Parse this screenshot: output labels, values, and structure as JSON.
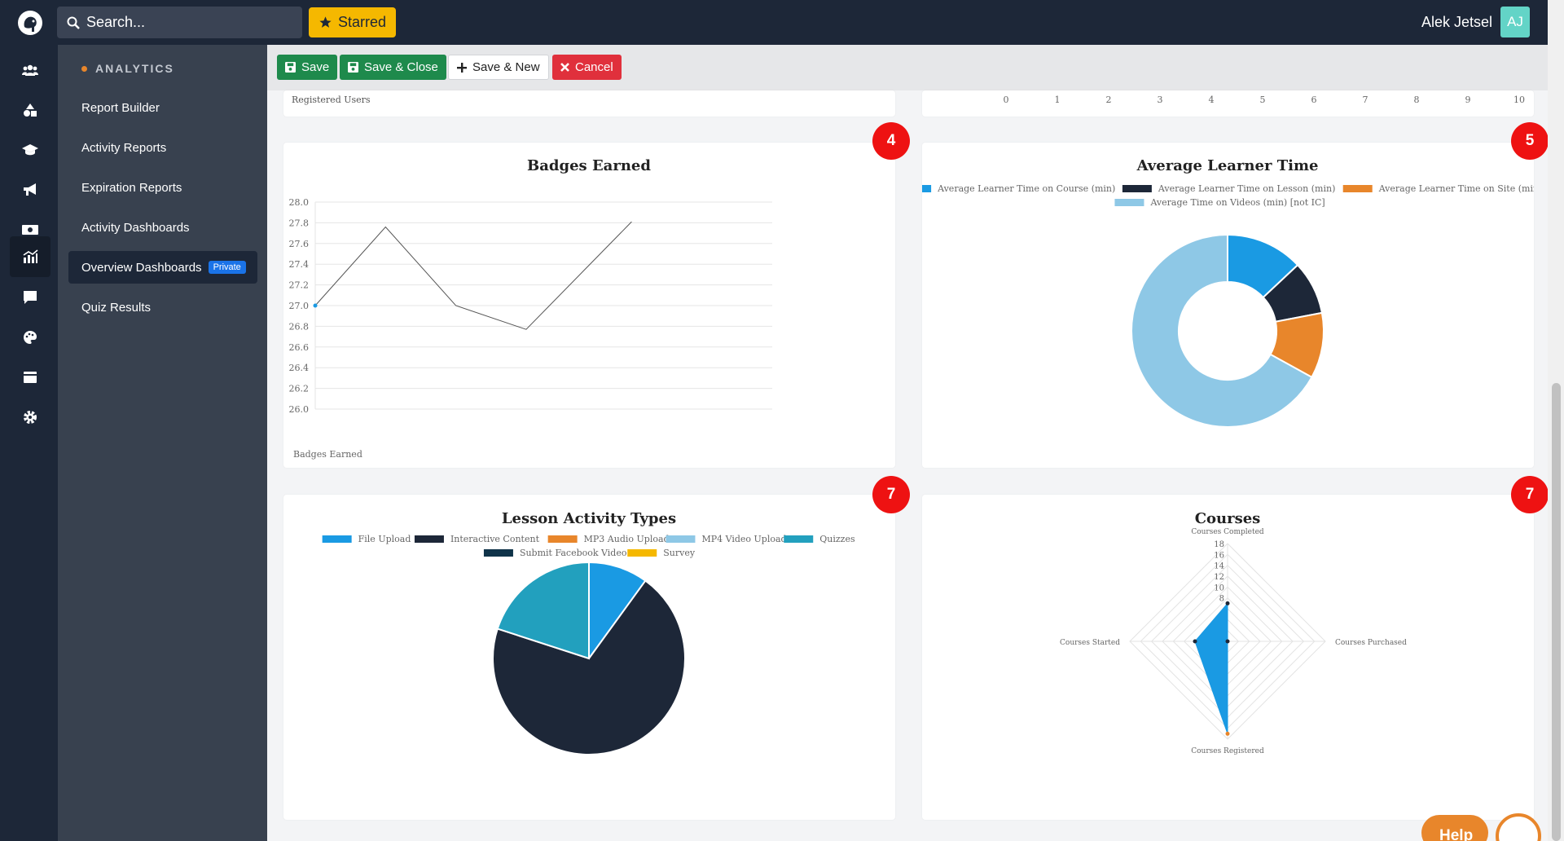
{
  "topbar": {
    "search_placeholder": "Search...",
    "starred_label": "Starred",
    "user_name": "Alek Jetsel",
    "user_initials": "AJ"
  },
  "rail": {
    "icons": [
      "users-icon",
      "shapes-icon",
      "graduation-cap-icon",
      "megaphone-icon",
      "money-icon",
      "analytics-icon",
      "chat-icon",
      "palette-icon",
      "calendar-icon",
      "gear-icon"
    ],
    "active": "analytics-icon"
  },
  "sidenav": {
    "section_title": "ANALYTICS",
    "items": [
      {
        "label": "Report Builder"
      },
      {
        "label": "Activity Reports"
      },
      {
        "label": "Expiration Reports"
      },
      {
        "label": "Activity Dashboards"
      },
      {
        "label": "Overview Dashboards",
        "badge": "Private"
      },
      {
        "label": "Quiz Results"
      }
    ]
  },
  "toolbar": {
    "save": "Save",
    "save_close": "Save & Close",
    "save_new": "Save & New",
    "cancel": "Cancel"
  },
  "cards": {
    "top_left_axis_label": "Registered Users",
    "top_right_ticks": [
      "0",
      "1",
      "2",
      "3",
      "4",
      "5",
      "6",
      "7",
      "8",
      "9",
      "10"
    ],
    "badges": [
      "4",
      "5",
      "7",
      "7"
    ]
  },
  "help": {
    "label": "Help"
  },
  "colors": {
    "dark": "#1d2738",
    "accent_orange": "#e8862b",
    "blue": "#1a9ae3",
    "light_blue": "#8ec8e6",
    "teal": "#22a0be",
    "navy": "#0f3349",
    "yellow": "#f5b800",
    "red_badge": "#ee1212"
  },
  "chart_data": [
    {
      "type": "line",
      "title": "Badges Earned",
      "xlabel": "Badges Earned",
      "ylabel": "",
      "ylim": [
        26.0,
        28.0
      ],
      "yticks": [
        "28.0",
        "27.8",
        "27.6",
        "27.4",
        "27.2",
        "27.0",
        "26.8",
        "26.6",
        "26.4",
        "26.2",
        "26.0"
      ],
      "x": [
        0,
        1,
        2,
        3,
        4.5
      ],
      "xlim": [
        0,
        6.5
      ],
      "values": [
        27.0,
        27.76,
        27.0,
        26.77,
        27.81
      ],
      "grid": true
    },
    {
      "type": "pie",
      "title": "Average Learner Time",
      "donut": true,
      "legend_position": "top",
      "series": [
        {
          "name": "Average Learner Time on Course (min)",
          "value": 13,
          "color": "#1a9ae3"
        },
        {
          "name": "Average Learner Time on Lesson (min)",
          "value": 9,
          "color": "#1d2738"
        },
        {
          "name": "Average Learner Time on Site (min)",
          "value": 11,
          "color": "#e8862b"
        },
        {
          "name": "Average Time on Videos (min) [not IC]",
          "value": 67,
          "color": "#8ec8e6"
        }
      ]
    },
    {
      "type": "pie",
      "title": "Lesson Activity Types",
      "legend_position": "top",
      "series": [
        {
          "name": "File Upload",
          "value": 10,
          "color": "#1a9ae3"
        },
        {
          "name": "Interactive Content",
          "value": 70,
          "color": "#1d2738"
        },
        {
          "name": "MP3 Audio Upload",
          "value": 0,
          "color": "#e8862b"
        },
        {
          "name": "MP4 Video Upload",
          "value": 0,
          "color": "#8ec8e6"
        },
        {
          "name": "Quizzes",
          "value": 20,
          "color": "#22a0be"
        },
        {
          "name": "Submit Facebook Video",
          "value": 0,
          "color": "#0f3349"
        },
        {
          "name": "Survey",
          "value": 0,
          "color": "#f5b800"
        }
      ]
    },
    {
      "type": "radar",
      "title": "Courses",
      "axes": [
        "Courses Completed",
        "Courses Purchased",
        "Courses Registered",
        "Courses Started"
      ],
      "rticks": [
        "18",
        "16",
        "14",
        "12",
        "10",
        "8"
      ],
      "rlim": [
        0,
        18
      ],
      "values": [
        7,
        0,
        17,
        6
      ],
      "color": "#1a9ae3"
    }
  ]
}
